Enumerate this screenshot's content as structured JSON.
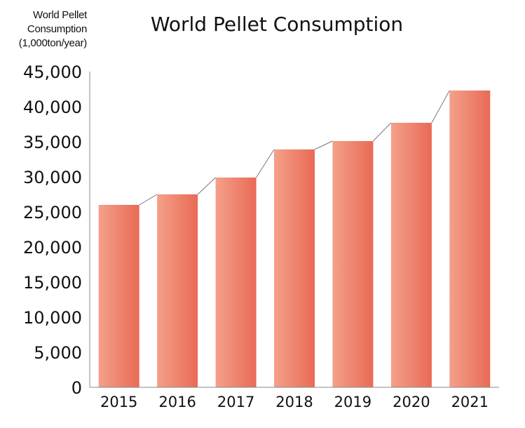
{
  "chart_data": {
    "type": "bar",
    "title": "World Pellet Consumption",
    "ylabel_lines": [
      "World Pellet",
      "Consumption",
      "(1,000ton/year)"
    ],
    "xlabel": "",
    "categories": [
      "2015",
      "2016",
      "2017",
      "2018",
      "2019",
      "2020",
      "2021"
    ],
    "values": [
      26000,
      27500,
      29900,
      33900,
      35100,
      37700,
      42300
    ],
    "ylim": [
      0,
      45000
    ],
    "yticks": [
      0,
      5000,
      10000,
      15000,
      20000,
      25000,
      30000,
      35000,
      40000,
      45000
    ],
    "ytick_labels": [
      "0",
      "5,000",
      "10,000",
      "15,000",
      "20,000",
      "25,000",
      "30,000",
      "35,000",
      "40,000",
      "45,000"
    ],
    "grid": false,
    "connector_lines": true,
    "bar_color_light": "#f4a08a",
    "bar_color_dark": "#e96a55",
    "axis_color": "#888888",
    "connector_color": "#777777"
  }
}
